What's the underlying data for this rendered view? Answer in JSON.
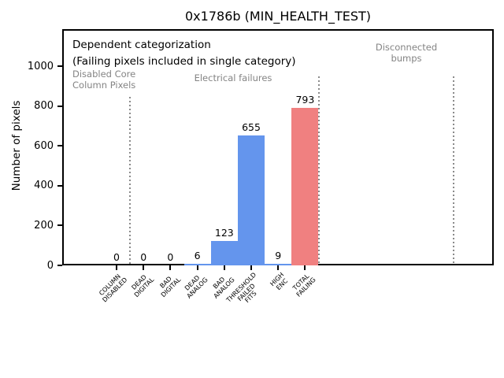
{
  "title": "0x1786b (MIN_HEALTH_TEST)",
  "annotations": {
    "dependent_line1": "Dependent categorization",
    "dependent_line2": "(Failing pixels included in single category)",
    "region_disabled_core": "Disabled Core\nColumn Pixels",
    "region_electrical": "Electrical failures",
    "region_disconnected": "Disconnected\nbumps"
  },
  "chart_data": {
    "type": "bar",
    "title": "0x1786b (MIN_HEALTH_TEST)",
    "xlabel": "",
    "ylabel": "Number of pixels",
    "categories": [
      "COLUMN\nDISABLED",
      "DEAD\nDIGITAL",
      "BAD\nDIGITAL",
      "DEAD\nANALOG",
      "BAD\nANALOG",
      "THRESHOLD\nFAILED\nFITS",
      "HIGH\nENC",
      "TOTAL\nFAILING"
    ],
    "values": [
      0,
      0,
      0,
      6,
      123,
      655,
      9,
      793
    ],
    "value_labels": [
      "0",
      "0",
      "0",
      "6",
      "123",
      "655",
      "9",
      "793"
    ],
    "bar_colors": [
      "#6495ED",
      "#6495ED",
      "#6495ED",
      "#6495ED",
      "#6495ED",
      "#6495ED",
      "#6495ED",
      "#F08080"
    ],
    "yticks": [
      0,
      200,
      400,
      600,
      800,
      1000
    ],
    "ylim": [
      0,
      1188
    ],
    "xlim": [
      -2,
      14
    ],
    "grid": false,
    "legend": null,
    "group_separators": [
      {
        "x": 0.5,
        "ymax": 848,
        "style": "dotted",
        "color": "#8a8a8a"
      },
      {
        "x": 7.5,
        "ymax": 950,
        "style": "dotted",
        "color": "#8a8a8a"
      },
      {
        "x": 12.5,
        "ymax": 950,
        "style": "dotted",
        "color": "#8a8a8a"
      }
    ],
    "colors": {
      "bar_blue": "#6495ED",
      "bar_red": "#F08080",
      "annotation_gray": "#848484"
    }
  }
}
